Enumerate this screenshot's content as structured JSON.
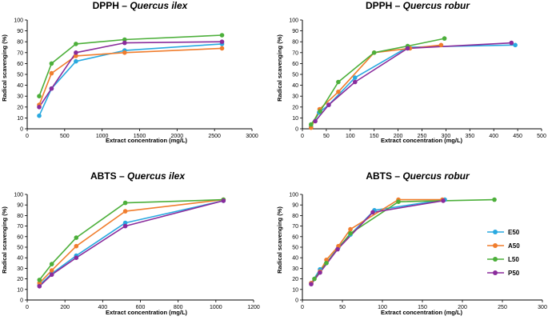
{
  "series_colors": {
    "E50": "#29a9e0",
    "A50": "#f07d2d",
    "L50": "#4caf3a",
    "P50": "#8a2c9c"
  },
  "legend": [
    "E50",
    "A50",
    "L50",
    "P50"
  ],
  "chart_data": [
    {
      "type": "line",
      "title_main": "DPPH – ",
      "title_species": "Quercus ilex",
      "xlabel": "Extract concentration (mg/L)",
      "ylabel": "Radical scavenging  (%)",
      "xlim": [
        0,
        3000
      ],
      "xticks": [
        0,
        500,
        1000,
        1500,
        2000,
        2500,
        3000
      ],
      "ylim": [
        0,
        100
      ],
      "yticks": [
        0,
        10,
        20,
        30,
        40,
        50,
        60,
        70,
        80,
        90,
        100
      ],
      "series": [
        {
          "name": "E50",
          "x": [
            160,
            325,
            650,
            1300,
            2600
          ],
          "values": [
            12,
            37,
            62,
            72,
            78
          ]
        },
        {
          "name": "A50",
          "x": [
            160,
            325,
            650,
            1300,
            2600
          ],
          "values": [
            22,
            51,
            67,
            70,
            74
          ]
        },
        {
          "name": "L50",
          "x": [
            160,
            325,
            650,
            1300,
            2600
          ],
          "values": [
            30,
            60,
            78,
            82,
            86
          ]
        },
        {
          "name": "P50",
          "x": [
            160,
            325,
            650,
            1300,
            2600
          ],
          "values": [
            20,
            37,
            70,
            79,
            80
          ]
        }
      ]
    },
    {
      "type": "line",
      "title_main": "DPPH – ",
      "title_species": "Quercus robur",
      "xlabel": "Extract concentration (mg/L)",
      "ylabel": "Radical scavenging  (%)",
      "xlim": [
        0,
        500
      ],
      "xticks": [
        0,
        50,
        100,
        150,
        200,
        250,
        300,
        350,
        400,
        450,
        500
      ],
      "ylim": [
        0,
        100
      ],
      "yticks": [
        0,
        10,
        20,
        30,
        40,
        50,
        60,
        70,
        80,
        90,
        100
      ],
      "series": [
        {
          "name": "E50",
          "x": [
            18,
            35,
            55,
            110,
            220,
            445
          ],
          "values": [
            2,
            15,
            22,
            47,
            75,
            77
          ]
        },
        {
          "name": "A50",
          "x": [
            18,
            36,
            75,
            150,
            225,
            290
          ],
          "values": [
            1,
            18,
            34,
            70,
            74,
            77
          ]
        },
        {
          "name": "L50",
          "x": [
            18,
            37,
            75,
            150,
            220,
            297
          ],
          "values": [
            4,
            16,
            43,
            70,
            76,
            83
          ]
        },
        {
          "name": "P50",
          "x": [
            27,
            55,
            110,
            220,
            437
          ],
          "values": [
            7,
            22,
            43,
            74,
            79
          ]
        }
      ]
    },
    {
      "type": "line",
      "title_main": "ABTS – ",
      "title_species": "Quercus ilex",
      "xlabel": "Extract concentration (mg/L)",
      "ylabel": "Radical scavenging  (%)",
      "xlim": [
        0,
        1200
      ],
      "xticks": [
        0,
        200,
        400,
        600,
        800,
        1000,
        1200
      ],
      "ylim": [
        0,
        100
      ],
      "yticks": [
        0,
        10,
        20,
        30,
        40,
        50,
        60,
        70,
        80,
        90,
        100
      ],
      "series": [
        {
          "name": "E50",
          "x": [
            65,
            130,
            260,
            520,
            1040
          ],
          "values": [
            14,
            25,
            42,
            73,
            94
          ]
        },
        {
          "name": "A50",
          "x": [
            65,
            130,
            260,
            520,
            1040
          ],
          "values": [
            16,
            28,
            51,
            84,
            95
          ]
        },
        {
          "name": "L50",
          "x": [
            65,
            130,
            260,
            520,
            1040
          ],
          "values": [
            19,
            34,
            59,
            92,
            95
          ]
        },
        {
          "name": "P50",
          "x": [
            65,
            130,
            260,
            520,
            1040
          ],
          "values": [
            13,
            24,
            40,
            70,
            94
          ]
        }
      ]
    },
    {
      "type": "line",
      "title_main": "ABTS – ",
      "title_species": "Quercus robur",
      "xlabel": "Extract concentration (mg/L)",
      "ylabel": "Radical scavenging  (%)",
      "xlim": [
        0,
        300
      ],
      "xticks": [
        0,
        50,
        100,
        150,
        200,
        250,
        300
      ],
      "ylim": [
        0,
        100
      ],
      "yticks": [
        0,
        10,
        20,
        30,
        40,
        50,
        60,
        70,
        80,
        90,
        100
      ],
      "series": [
        {
          "name": "E50",
          "x": [
            11,
            22,
            30,
            45,
            60,
            90,
            178
          ],
          "values": [
            16,
            29,
            35,
            50,
            62,
            85,
            95
          ]
        },
        {
          "name": "A50",
          "x": [
            11,
            22,
            30,
            45,
            60,
            120,
            175
          ],
          "values": [
            16,
            27,
            38,
            51,
            67,
            95,
            95
          ]
        },
        {
          "name": "L50",
          "x": [
            15,
            30,
            60,
            120,
            240
          ],
          "values": [
            20,
            35,
            63,
            93,
            95
          ]
        },
        {
          "name": "P50",
          "x": [
            11,
            22,
            44,
            88,
            176
          ],
          "values": [
            15,
            26,
            48,
            83,
            94
          ]
        }
      ]
    }
  ]
}
